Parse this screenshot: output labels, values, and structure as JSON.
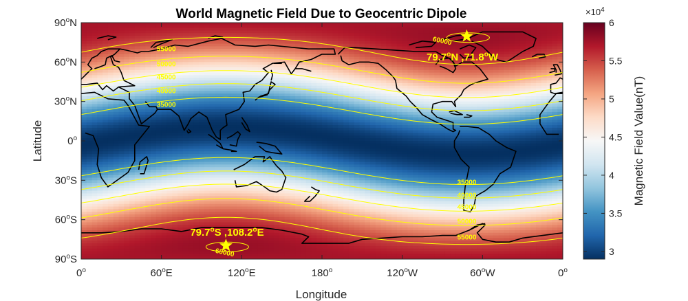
{
  "chart_data": {
    "type": "heatmap",
    "title": "World Magnetic Field Due to Geocentric Dipole",
    "xlabel": "Longitude",
    "ylabel": "Latitude",
    "x_ticks": [
      {
        "value": 0,
        "base": "0",
        "sup": "o",
        "suffix": ""
      },
      {
        "value": 60,
        "base": "60",
        "sup": "o",
        "suffix": "E"
      },
      {
        "value": 120,
        "base": "120",
        "sup": "o",
        "suffix": "E"
      },
      {
        "value": 180,
        "base": "180",
        "sup": "o",
        "suffix": ""
      },
      {
        "value": 240,
        "base": "120",
        "sup": "o",
        "suffix": "W"
      },
      {
        "value": 300,
        "base": "60",
        "sup": "o",
        "suffix": "W"
      },
      {
        "value": 360,
        "base": "0",
        "sup": "o",
        "suffix": ""
      }
    ],
    "y_ticks": [
      {
        "value": 90,
        "base": "90",
        "sup": "o",
        "suffix": "N"
      },
      {
        "value": 60,
        "base": "60",
        "sup": "o",
        "suffix": "N"
      },
      {
        "value": 30,
        "base": "30",
        "sup": "o",
        "suffix": "N"
      },
      {
        "value": 0,
        "base": "0",
        "sup": "o",
        "suffix": ""
      },
      {
        "value": -30,
        "base": "30",
        "sup": "o",
        "suffix": "S"
      },
      {
        "value": -60,
        "base": "60",
        "sup": "o",
        "suffix": "S"
      },
      {
        "value": -90,
        "base": "90",
        "sup": "o",
        "suffix": "S"
      }
    ],
    "xlim": [
      0,
      360
    ],
    "ylim": [
      -90,
      90
    ],
    "grid": false,
    "dipole": {
      "pole_lat": 79.7,
      "pole_lon": 288.2,
      "field_min": 29000,
      "field_max": 60000
    },
    "contour_levels": [
      35000,
      40000,
      45000,
      50000,
      55000,
      60000
    ],
    "contour_labels": [
      {
        "text": "55000",
        "lon": 60,
        "hemisphere": "north"
      },
      {
        "text": "50000",
        "lon": 60,
        "hemisphere": "north"
      },
      {
        "text": "45000",
        "lon": 60,
        "hemisphere": "north"
      },
      {
        "text": "40000",
        "lon": 60,
        "hemisphere": "north"
      },
      {
        "text": "35000",
        "lon": 60,
        "hemisphere": "north"
      },
      {
        "text": "35000",
        "lon": 279,
        "hemisphere": "south"
      },
      {
        "text": "40000",
        "lon": 279,
        "hemisphere": "south"
      },
      {
        "text": "45000",
        "lon": 279,
        "hemisphere": "south"
      },
      {
        "text": "50000",
        "lon": 279,
        "hemisphere": "south"
      },
      {
        "text": "55000",
        "lon": 279,
        "hemisphere": "south"
      },
      {
        "text": "60000",
        "lon": 278,
        "hemisphere": "north-pole"
      },
      {
        "text": "60000",
        "lon": 98,
        "hemisphere": "south-pole"
      }
    ],
    "poles": [
      {
        "name": "north",
        "lat": 79.7,
        "lon": 288.2,
        "label_parts": [
          "79.7",
          "o",
          "N ,71.8",
          "o",
          "W"
        ]
      },
      {
        "name": "south",
        "lat": -79.7,
        "lon": 108.2,
        "label_parts": [
          "79.7",
          "o",
          "S ,108.2",
          "o",
          "E"
        ]
      }
    ],
    "colorbar": {
      "label": "Magnetic Field Value(nT)",
      "multiplier_base": "×10",
      "multiplier_exp": "4",
      "ticks": [
        "3",
        "3.5",
        "4",
        "4.5",
        "5",
        "5.5",
        "6"
      ],
      "tick_values": [
        30000,
        35000,
        40000,
        45000,
        50000,
        55000,
        60000
      ],
      "colormap": [
        "#053061",
        "#2166ac",
        "#4393c3",
        "#92c5de",
        "#d1e5f0",
        "#f7f7f7",
        "#fddbc7",
        "#f4a582",
        "#d6604d",
        "#b2182b",
        "#67001f"
      ]
    },
    "contour_color": "#ffff00",
    "coastline_color": "#000000"
  }
}
